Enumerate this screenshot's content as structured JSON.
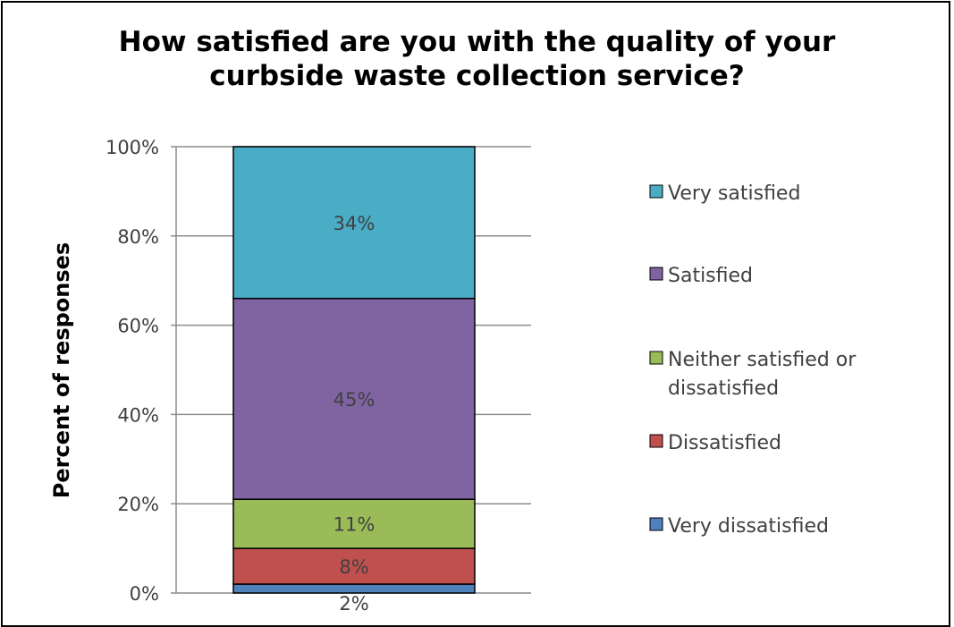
{
  "chart_data": {
    "type": "bar",
    "stacked": true,
    "title_lines": [
      "How satisfied are you with the quality of your",
      "curbside waste collection service?"
    ],
    "ylabel": "Percent of responses",
    "ylim": [
      0,
      100
    ],
    "yticks": [
      "0%",
      "20%",
      "40%",
      "60%",
      "80%",
      "100%"
    ],
    "grid": true,
    "legend_position": "right",
    "series": [
      {
        "name": "Very dissatisfied",
        "value": 2,
        "label": "2%",
        "color": "#4F81BD"
      },
      {
        "name": "Dissatisfied",
        "value": 8,
        "label": "8%",
        "color": "#C0504D"
      },
      {
        "name": "Neither satisfied or dissatisfied",
        "legend_lines": [
          "Neither satisfied or",
          "dissatisfied"
        ],
        "value": 11,
        "label": "11%",
        "color": "#9BBB59"
      },
      {
        "name": "Satisfied",
        "value": 45,
        "label": "45%",
        "color": "#8064A2"
      },
      {
        "name": "Very satisfied",
        "value": 34,
        "label": "34%",
        "color": "#4BACC6"
      }
    ]
  }
}
